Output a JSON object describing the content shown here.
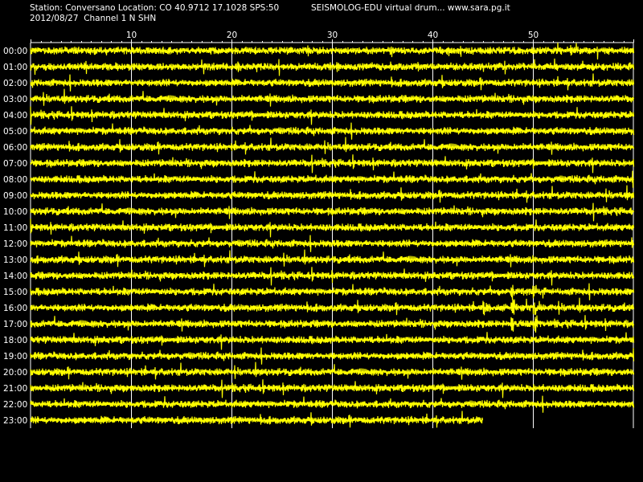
{
  "header": {
    "station_info": "Station: Conversano Location: CO 40.9712 17.1028 SPS:50",
    "date_channel": "2012/08/27  Channel 1 N SHN",
    "program_title": "SEISMOLOG-EDU virtual drum... www.sara.pg.it"
  },
  "colors": {
    "background": "#000000",
    "trace": "#ffff00",
    "grid": "#ffffff",
    "text": "#ffffff"
  },
  "chart_data": {
    "type": "line",
    "title": "",
    "xlabel": "",
    "ylabel": "",
    "x_unit_range": [
      0,
      60
    ],
    "x_ticks": [
      10,
      20,
      30,
      40,
      50
    ],
    "x_tick_labels": [
      "10",
      "20",
      "30",
      "40",
      "50"
    ],
    "grid": true,
    "hours": [
      "00:00",
      "01:00",
      "02:00",
      "03:00",
      "04:00",
      "05:00",
      "06:00",
      "07:00",
      "08:00",
      "09:00",
      "10:00",
      "11:00",
      "12:00",
      "13:00",
      "14:00",
      "15:00",
      "16:00",
      "17:00",
      "18:00",
      "19:00",
      "20:00",
      "21:00",
      "22:00",
      "23:00"
    ],
    "trace_end_minutes": [
      60,
      60,
      60,
      60,
      60,
      60,
      60,
      60,
      60,
      60,
      60,
      60,
      60,
      60,
      60,
      60,
      60,
      60,
      60,
      60,
      60,
      60,
      60,
      45
    ],
    "notable_events": [
      {
        "hour": "15:00",
        "minutes": [
          47.9,
          48.1,
          50.1,
          50.3,
          50.6
        ]
      },
      {
        "hour": "16:00",
        "minutes": [
          45.1,
          45.3,
          47.9,
          48.1,
          50.1,
          50.3,
          50.6
        ]
      },
      {
        "hour": "17:00",
        "minutes": [
          47.9,
          50.1,
          50.3
        ]
      }
    ]
  }
}
